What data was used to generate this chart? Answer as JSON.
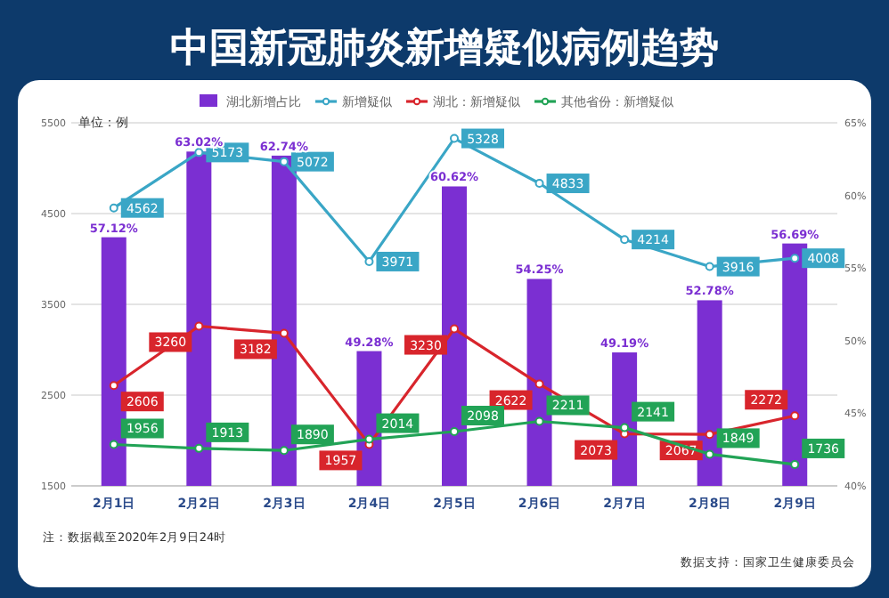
{
  "chart_data": {
    "type": "bar",
    "title": "中国新冠肺炎新增疑似病例趋势",
    "categories": [
      "2月1日",
      "2月2日",
      "2月3日",
      "2月4日",
      "2月5日",
      "2月6日",
      "2月7日",
      "2月8日",
      "2月9日"
    ],
    "series": [
      {
        "name": "湖北新增占比",
        "axis": "y2",
        "color": "#7b2fd2",
        "values": [
          57.12,
          63.02,
          62.74,
          49.28,
          60.62,
          54.25,
          49.19,
          52.78,
          56.69
        ],
        "value_labels": [
          "57.12%",
          "63.02%",
          "62.74%",
          "49.28%",
          "60.62%",
          "54.25%",
          "49.19%",
          "52.78%",
          "56.69%"
        ]
      },
      {
        "name": "新增疑似",
        "type": "line",
        "color": "#3aa6c6",
        "values": [
          4562,
          5173,
          5072,
          3971,
          5328,
          4833,
          4214,
          3916,
          4008
        ],
        "value_labels": [
          "4562",
          "5173",
          "5072",
          "3971",
          "5328",
          "4833",
          "4214",
          "3916",
          "4008"
        ]
      },
      {
        "name": "湖北：新增疑似",
        "type": "line",
        "color": "#d8252c",
        "values": [
          2606,
          3260,
          3182,
          1957,
          3230,
          2622,
          2073,
          2067,
          2272
        ],
        "value_labels": [
          "2606",
          "3260",
          "3182",
          "1957",
          "3230",
          "2622",
          "2073",
          "2067",
          "2272"
        ]
      },
      {
        "name": "其他省份：新增疑似",
        "type": "line",
        "color": "#22a356",
        "values": [
          1956,
          1913,
          1890,
          2014,
          2098,
          2211,
          2141,
          1849,
          1736
        ],
        "value_labels": [
          "1956",
          "1913",
          "1890",
          "2014",
          "2098",
          "2211",
          "2141",
          "1849",
          "1736"
        ]
      }
    ],
    "ylim": [
      1500,
      5500
    ],
    "yticks": [
      1500,
      2500,
      3500,
      4500,
      5500
    ],
    "y2lim": [
      40,
      65
    ],
    "y2ticks": [
      {
        "value": 40,
        "label": "40%"
      },
      {
        "value": 45,
        "label": "45%"
      },
      {
        "value": 50,
        "label": "50%"
      },
      {
        "value": 55,
        "label": "55%"
      },
      {
        "value": 60,
        "label": "60%"
      },
      {
        "value": 65,
        "label": "65%"
      }
    ],
    "grid": "y",
    "legend": "top",
    "marker": "circle",
    "annotations": [
      "单位：例",
      "注：数据截至2020年2月9日24时",
      "数据支持：国家卫生健康委员会"
    ]
  }
}
